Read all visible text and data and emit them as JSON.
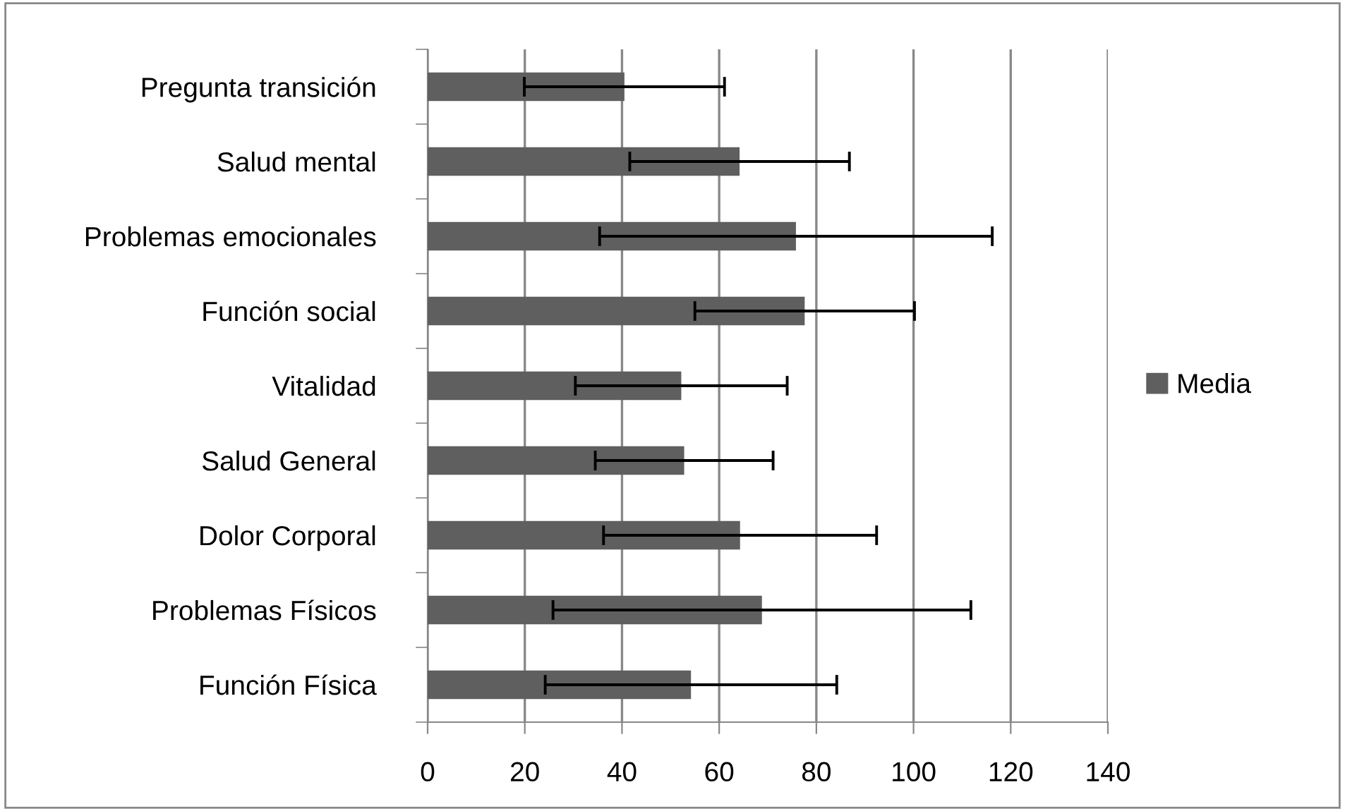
{
  "chart_data": {
    "type": "bar",
    "orientation": "horizontal",
    "categories": [
      "Pregunta transición",
      "Salud mental",
      "Problemas emocionales",
      "Función social",
      "Vitalidad",
      "Salud General",
      "Dolor Corporal",
      "Problemas Físicos",
      "Función Física"
    ],
    "series": [
      {
        "name": "Media",
        "color": "#5f5f5f",
        "values": [
          40.5,
          64.2,
          75.8,
          77.6,
          52.2,
          52.8,
          64.3,
          68.8,
          54.2
        ],
        "errors": [
          20.6,
          22.6,
          40.4,
          22.6,
          21.8,
          18.3,
          28.1,
          43.0,
          30.0
        ]
      }
    ],
    "xlim": [
      0,
      140
    ],
    "xticks": [
      0,
      20,
      40,
      60,
      80,
      100,
      120,
      140
    ],
    "grid": "x",
    "legend": "right"
  }
}
